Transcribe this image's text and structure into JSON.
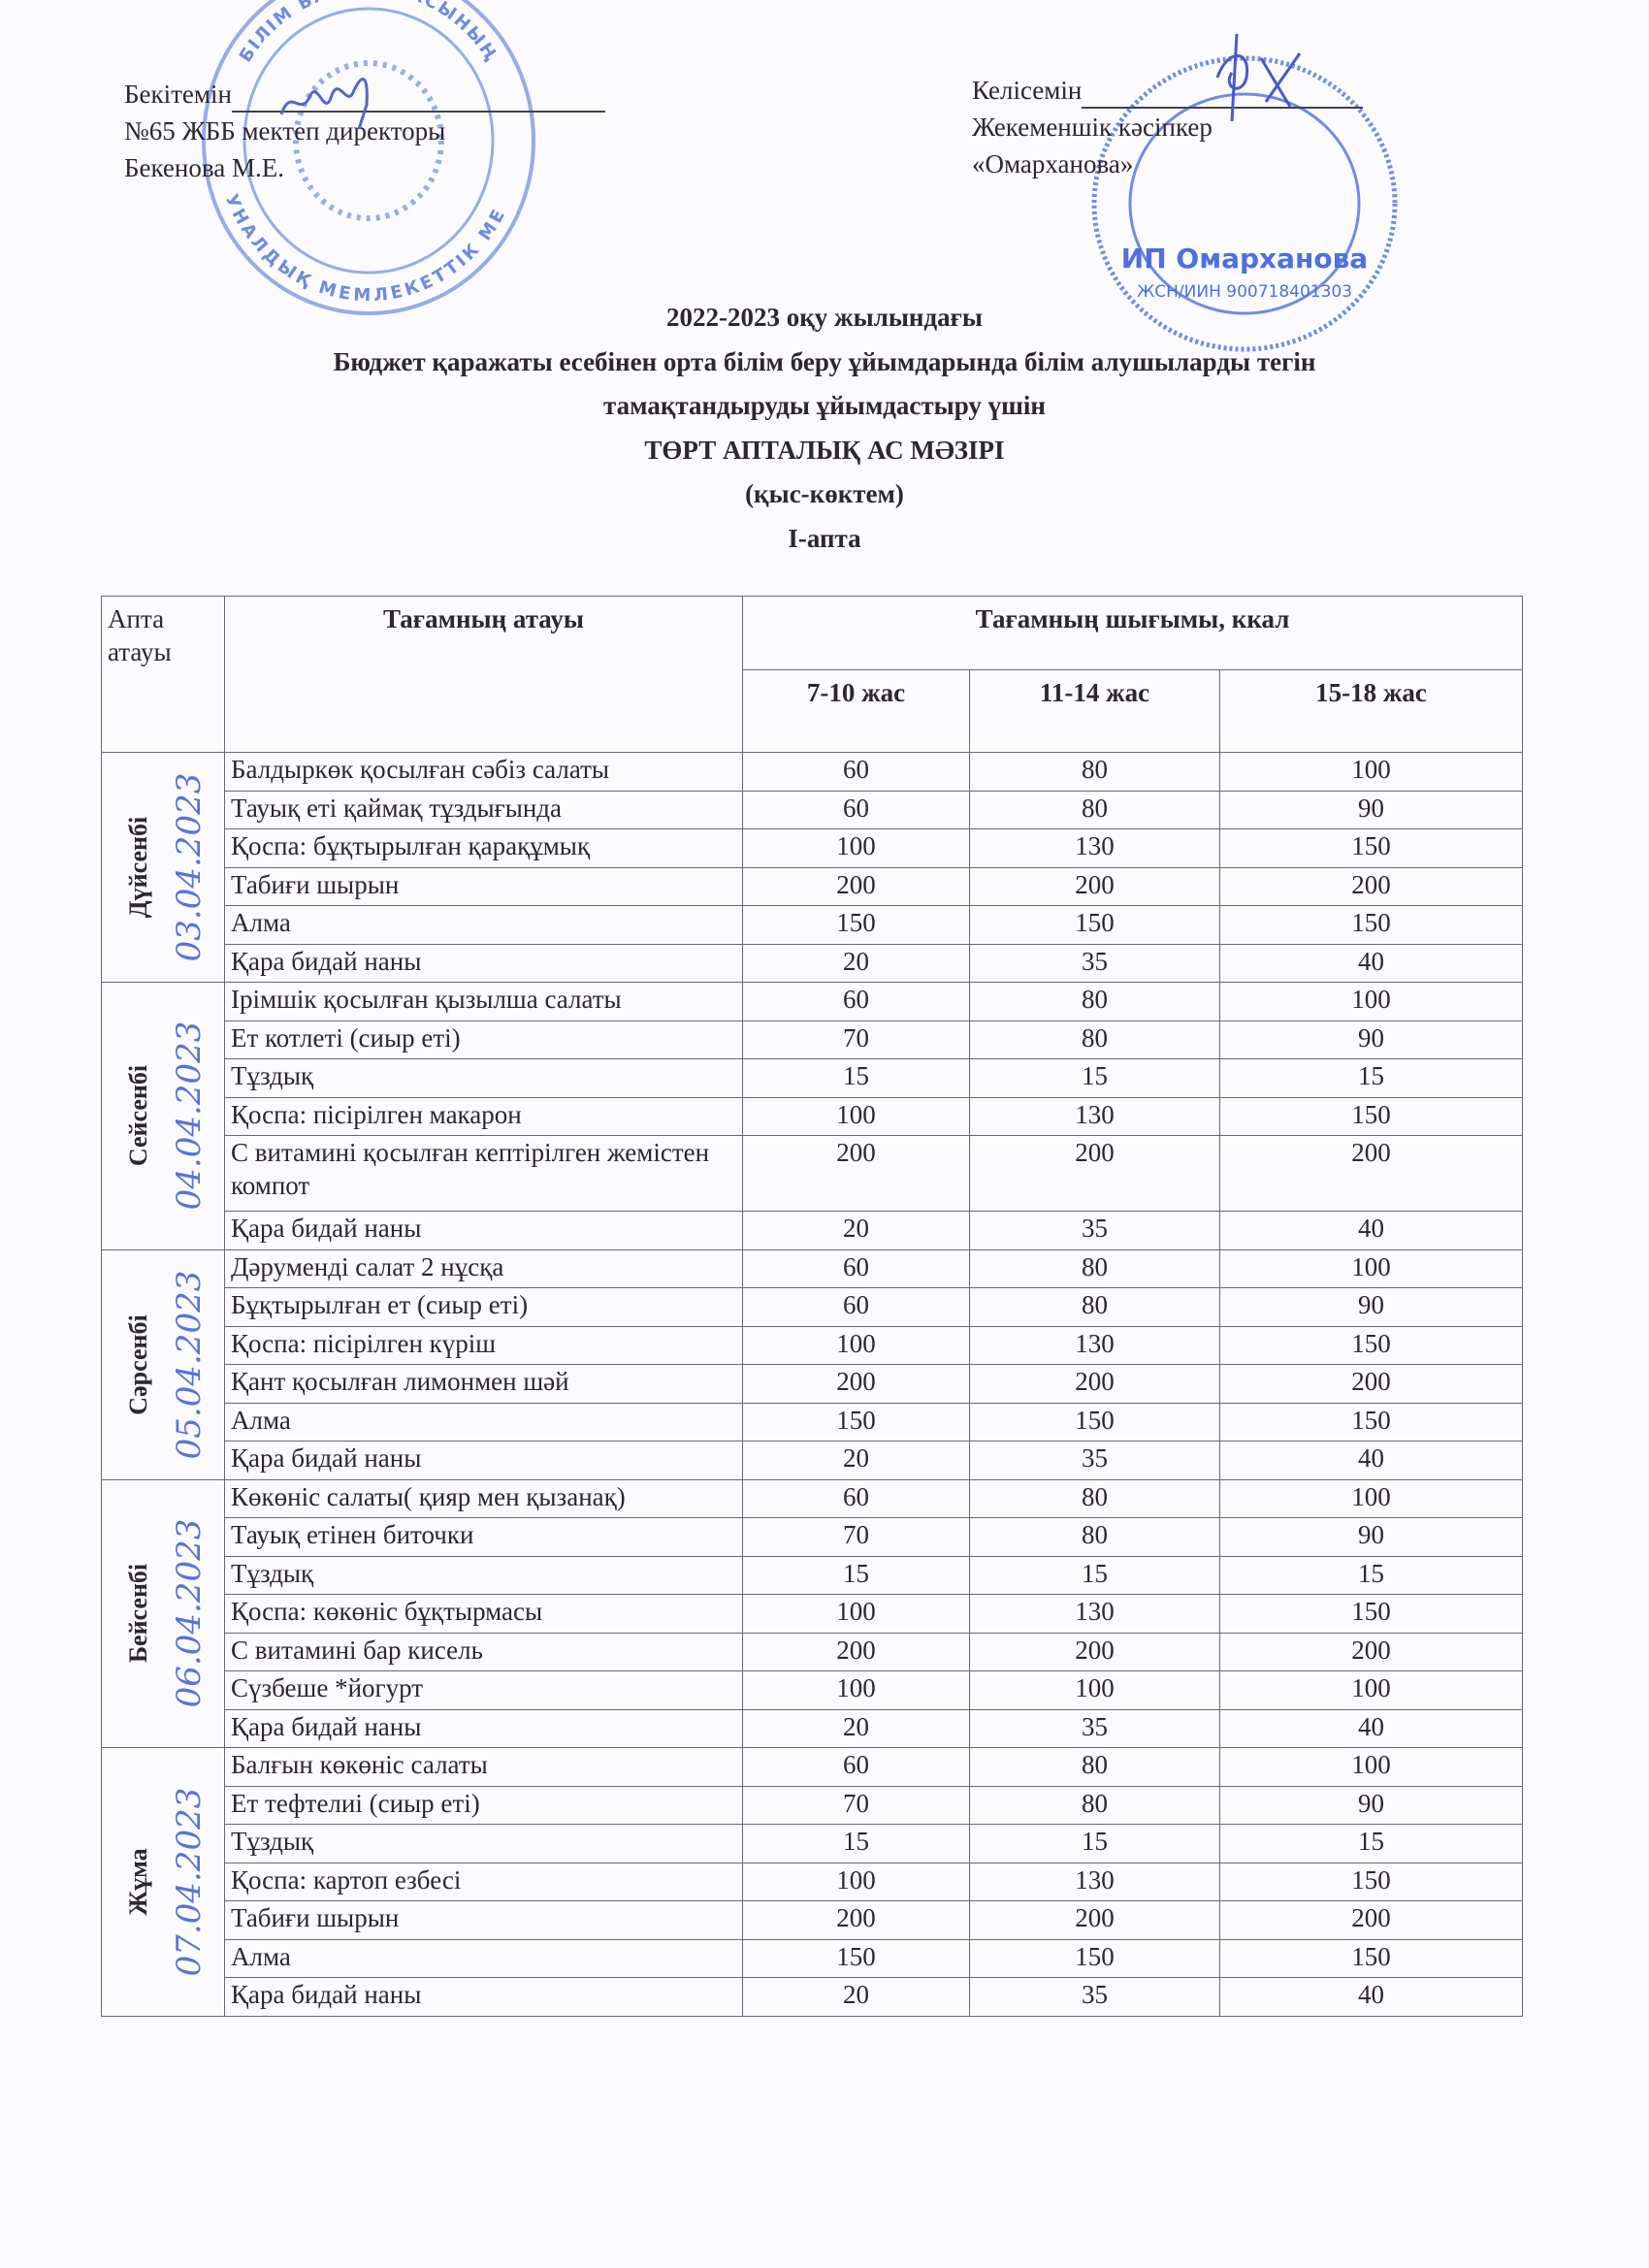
{
  "approval": {
    "left": [
      "Бекітемін",
      "№65 ЖББ мектеп директоры",
      "Бекенова М.Е."
    ],
    "right": [
      "Келісемін",
      "Жекеменшік кәсіпкер",
      "«Омарханова»"
    ]
  },
  "stamps": {
    "left_text": "БІЛІМ БАСҚАРМАСЫНЫҢ КОММУНАЛДЫҚ МЕМЛЕКЕТТІК МЕКЕМЕСІ",
    "right_text": "ИП Омарханова",
    "right_id": "ЖСН/ИИН 900718401303",
    "color": "#5b78d6"
  },
  "titles": [
    "2022-2023 оқу жылындағы",
    "Бюджет қаражаты есебінен орта білім беру ұйымдарында білім алушыларды тегін",
    "тамақтандыруды ұйымдастыру үшін",
    "ТӨРТ АПТАЛЫҚ АС МӘЗІРІ",
    "(қыс-көктем)",
    "І-апта"
  ],
  "table": {
    "headers": {
      "day": "Апта атауы",
      "dish": "Тағамның атауы",
      "yield": "Тағамның шығымы, ккал",
      "ages": [
        "7-10 жас",
        "11-14 жас",
        "15-18 жас"
      ]
    },
    "days": [
      {
        "name": "Дүйсенбі",
        "date": "03.04.2023",
        "rows": [
          [
            "Балдыркөк қосылған сәбіз салаты",
            "60",
            "80",
            "100"
          ],
          [
            "Тауық еті қаймақ тұздығында",
            "60",
            "80",
            "90"
          ],
          [
            "Қоспа: бұқтырылған қарақұмық",
            "100",
            "130",
            "150"
          ],
          [
            "Табиғи шырын",
            "200",
            "200",
            "200"
          ],
          [
            "Алма",
            "150",
            "150",
            "150"
          ],
          [
            "Қара бидай наны",
            "20",
            "35",
            "40"
          ]
        ]
      },
      {
        "name": "Сейсенбі",
        "date": "04.04.2023",
        "rows": [
          [
            "Ірімшік қосылған қызылша салаты",
            "60",
            "80",
            "100"
          ],
          [
            "Ет котлеті (сиыр еті)",
            "70",
            "80",
            "90"
          ],
          [
            "Тұздық",
            "15",
            "15",
            "15"
          ],
          [
            "Қоспа: пісірілген макарон",
            "100",
            "130",
            "150"
          ],
          [
            "С витамині қосылған кептірілген жемістен компот",
            "200",
            "200",
            "200"
          ],
          [
            "Қара бидай наны",
            "20",
            "35",
            "40"
          ]
        ]
      },
      {
        "name": "Сәрсенбі",
        "date": "05.04.2023",
        "rows": [
          [
            "Дәрумендi салат 2 нұсқа",
            "60",
            "80",
            "100"
          ],
          [
            "Бұқтырылған ет (сиыр еті)",
            "60",
            "80",
            "90"
          ],
          [
            "Қоспа: пісірілген күріш",
            "100",
            "130",
            "150"
          ],
          [
            "Қант қосылған лимонмен шәй",
            "200",
            "200",
            "200"
          ],
          [
            "Алма",
            "150",
            "150",
            "150"
          ],
          [
            "Қара бидай наны",
            "20",
            "35",
            "40"
          ]
        ]
      },
      {
        "name": "Бейсенбі",
        "date": "06.04.2023",
        "rows": [
          [
            "Көкөніс салаты( қияр мен қызанақ)",
            "60",
            "80",
            "100"
          ],
          [
            "Тауық етінен биточки",
            "70",
            "80",
            "90"
          ],
          [
            "Тұздық",
            "15",
            "15",
            "15"
          ],
          [
            "Қоспа: көкөніс бұқтырмасы",
            "100",
            "130",
            "150"
          ],
          [
            "С витамині бар кисель",
            "200",
            "200",
            "200"
          ],
          [
            "Сүзбеше *йогурт",
            "100",
            "100",
            "100"
          ],
          [
            "Қара бидай наны",
            "20",
            "35",
            "40"
          ]
        ]
      },
      {
        "name": "Жұма",
        "date": "07.04.2023",
        "rows": [
          [
            "Балғын көкөніс салаты",
            "60",
            "80",
            "100"
          ],
          [
            "Ет тефтелиі (сиыр еті)",
            "70",
            "80",
            "90"
          ],
          [
            "Тұздық",
            "15",
            "15",
            "15"
          ],
          [
            "Қоспа:  картоп езбесі",
            "100",
            "130",
            "150"
          ],
          [
            "Табиғи шырын",
            "200",
            "200",
            "200"
          ],
          [
            "Алма",
            "150",
            "150",
            "150"
          ],
          [
            "Қара бидай наны",
            "20",
            "35",
            "40"
          ]
        ]
      }
    ]
  }
}
